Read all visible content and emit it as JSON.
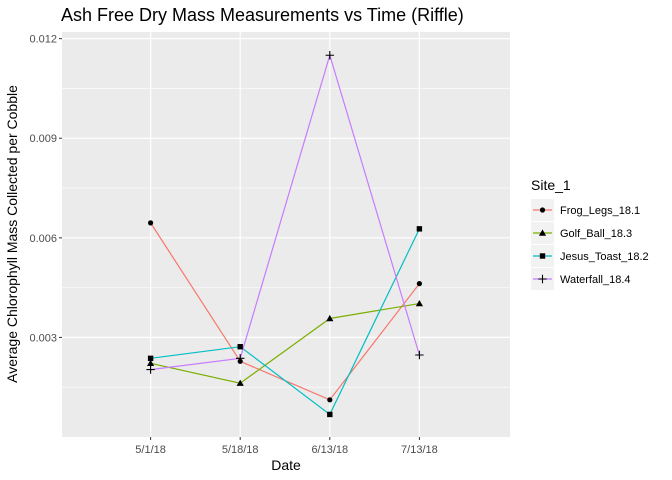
{
  "chart_data": {
    "type": "line",
    "title": "Ash Free Dry Mass Measurements vs Time (Riffle)",
    "xlabel": "Date",
    "ylabel": "Average Chlorophyll Mass Collected per Cobble",
    "categories": [
      "5/1/18",
      "5/18/18",
      "6/13/18",
      "7/13/18"
    ],
    "ylim": [
      0.0,
      0.0122
    ],
    "yticks": [
      0.003,
      0.006,
      0.009,
      0.012
    ],
    "ytick_labels": [
      "0.003",
      "0.006",
      "0.009",
      "0.012"
    ],
    "legend_title": "Site_1",
    "legend_position": "right",
    "grid": true,
    "series": [
      {
        "name": "Frog_Legs_18.1",
        "color": "#F8766D",
        "marker": "circle",
        "values": [
          0.00645,
          0.00228,
          0.00112,
          0.00462
        ]
      },
      {
        "name": "Golf_Ball_18.3",
        "color": "#7CAE00",
        "marker": "triangle",
        "values": [
          0.00222,
          0.00162,
          0.00357,
          0.00402
        ]
      },
      {
        "name": "Jesus_Toast_18.2",
        "color": "#00BFC4",
        "marker": "square",
        "values": [
          0.00237,
          0.00272,
          0.00068,
          0.00627
        ]
      },
      {
        "name": "Waterfall_18.4",
        "color": "#C77CFF",
        "marker": "plus",
        "values": [
          0.00203,
          0.00237,
          0.0115,
          0.00247
        ]
      }
    ]
  }
}
